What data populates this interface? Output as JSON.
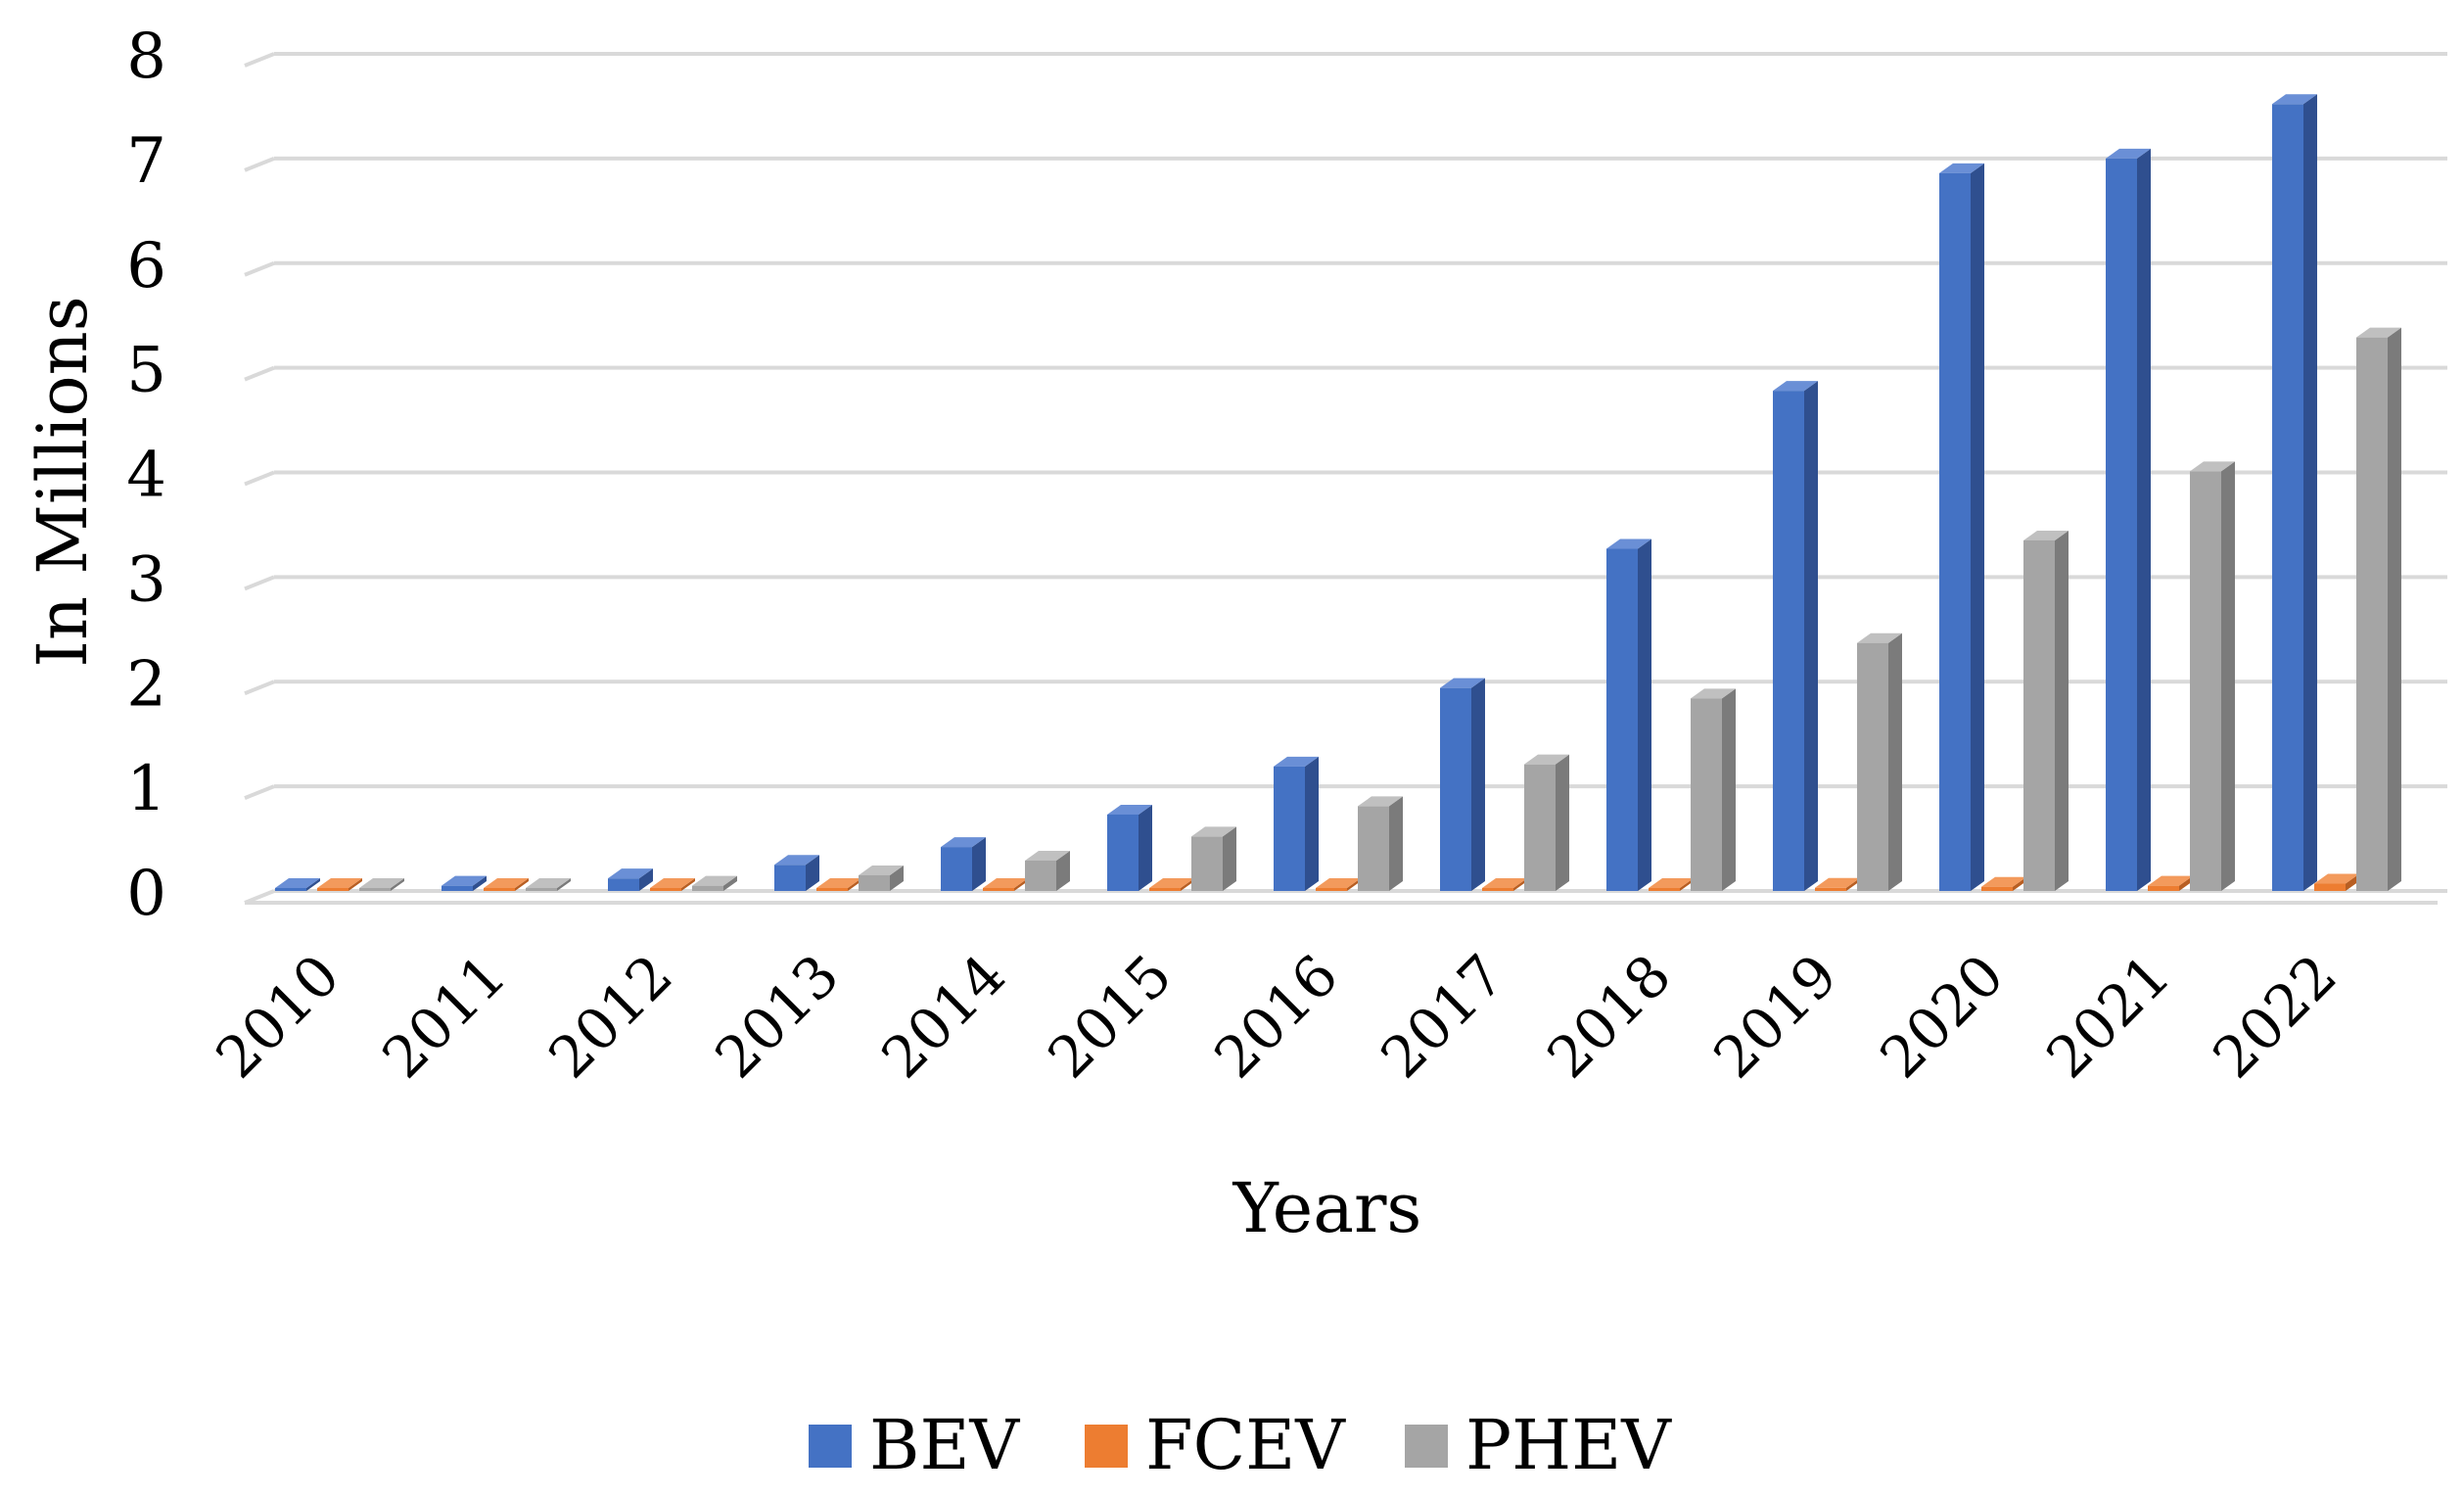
{
  "chart_data": {
    "type": "bar",
    "style": "3d-clustered-column",
    "title": "",
    "xlabel": "Years",
    "ylabel": "In Millions",
    "ylim": [
      0,
      8
    ],
    "yticks": [
      "0",
      "1",
      "2",
      "3",
      "4",
      "5",
      "6",
      "7",
      "8"
    ],
    "grid": true,
    "legend_position": "bottom",
    "categories": [
      "2010",
      "2011",
      "2012",
      "2013",
      "2014",
      "2015",
      "2016",
      "2017",
      "2018",
      "2019",
      "2020",
      "2021",
      "2022"
    ],
    "series": [
      {
        "name": "BEV",
        "color": "#4472C4",
        "side_color": "#2F4F8F",
        "top_color": "#6A8FD6",
        "values": [
          0.01,
          0.05,
          0.12,
          0.25,
          0.42,
          0.73,
          1.19,
          1.94,
          3.27,
          4.78,
          6.86,
          7.0,
          7.52
        ]
      },
      {
        "name": "FCEV",
        "color": "#ED7D31",
        "side_color": "#B85E22",
        "top_color": "#F39A5C",
        "values": [
          0.0,
          0.0,
          0.0,
          0.0,
          0.0,
          0.01,
          0.01,
          0.01,
          0.02,
          0.03,
          0.04,
          0.05,
          0.07
        ]
      },
      {
        "name": "PHEV",
        "color": "#A5A5A5",
        "side_color": "#7B7B7B",
        "top_color": "#C0C0C0",
        "values": [
          0.0,
          0.01,
          0.05,
          0.15,
          0.29,
          0.52,
          0.81,
          1.21,
          1.84,
          2.37,
          3.35,
          4.01,
          5.29
        ]
      }
    ]
  }
}
